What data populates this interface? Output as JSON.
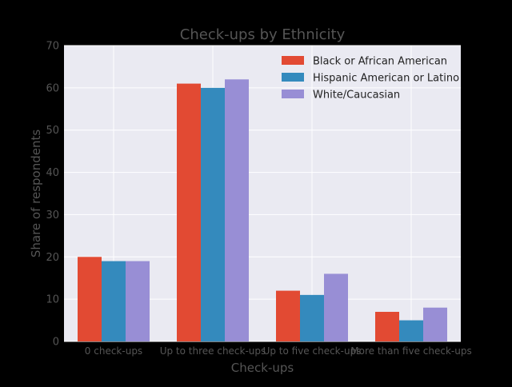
{
  "chart_data": {
    "type": "bar",
    "title": "Check-ups by Ethnicity",
    "xlabel": "Check-ups",
    "ylabel": "Share of respondents",
    "categories": [
      "0 check-ups",
      "Up to three check-ups",
      "Up to five check-ups",
      "More than five check-ups"
    ],
    "series": [
      {
        "name": "Black or African American",
        "values": [
          20,
          61,
          12,
          7
        ],
        "color": "#E24A33"
      },
      {
        "name": "Hispanic American or Latino",
        "values": [
          19,
          60,
          11,
          5
        ],
        "color": "#348ABD"
      },
      {
        "name": "White/Caucasian",
        "values": [
          19,
          62,
          16,
          8
        ],
        "color": "#988ED5"
      }
    ],
    "ylim": [
      0,
      70
    ],
    "yticks": [
      0,
      10,
      20,
      30,
      40,
      50,
      60,
      70
    ],
    "grid": true,
    "legend_position": "top-right",
    "colors": {
      "plot_background": "#EAEAF2",
      "grid": "#FFFFFF",
      "text": "#555555"
    }
  }
}
